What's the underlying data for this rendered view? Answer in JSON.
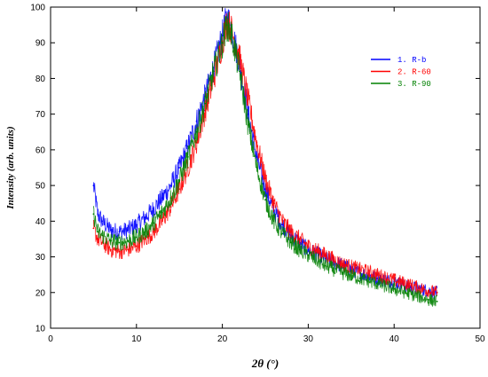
{
  "chart_data": {
    "type": "line",
    "title": "",
    "xlabel": "2θ (°)",
    "ylabel": "Intensity (arb. units)",
    "xlim": [
      0,
      50
    ],
    "ylim": [
      10,
      100
    ],
    "xticks": [
      0,
      10,
      20,
      30,
      40,
      50
    ],
    "yticks": [
      10,
      20,
      30,
      40,
      50,
      60,
      70,
      80,
      90,
      100
    ],
    "grid": false,
    "legend_position": "top-right",
    "series": [
      {
        "name": "1. R-b",
        "color": "#0000ff",
        "x": [
          5.0,
          5.5,
          6,
          7,
          8,
          9,
          10,
          11,
          12,
          13,
          14,
          15,
          16,
          17,
          18,
          19,
          20,
          20.5,
          21,
          22,
          23,
          24,
          25,
          26,
          27,
          28,
          29,
          30,
          32,
          34,
          36,
          38,
          40,
          42,
          44,
          45
        ],
        "y": [
          50,
          42,
          40,
          37.5,
          37,
          37.5,
          39,
          41,
          43.5,
          46.5,
          50,
          55,
          61,
          68,
          75,
          83,
          92,
          97,
          95,
          84,
          70,
          58,
          49,
          43,
          39,
          36,
          34,
          32,
          29.5,
          27.5,
          25.5,
          24,
          23,
          21.5,
          20.5,
          20
        ]
      },
      {
        "name": "2. R-60",
        "color": "#ff0000",
        "x": [
          5.0,
          5.5,
          6,
          7,
          8,
          9,
          10,
          11,
          12,
          13,
          14,
          15,
          16,
          17,
          18,
          19,
          20,
          20.5,
          21,
          22,
          23,
          24,
          25,
          26,
          27,
          28,
          29,
          30,
          32,
          34,
          36,
          38,
          40,
          42,
          44,
          45
        ],
        "y": [
          38,
          35,
          34,
          32,
          31.5,
          32,
          33,
          35,
          37,
          40,
          44,
          49,
          55,
          62,
          71,
          80,
          90,
          96,
          94,
          86,
          74,
          62,
          52,
          45,
          40,
          37,
          35,
          33,
          30.5,
          28,
          26.5,
          25,
          23.5,
          22,
          20.5,
          20
        ]
      },
      {
        "name": "3. R-90",
        "color": "#008000",
        "x": [
          5.0,
          5.5,
          6,
          7,
          8,
          9,
          10,
          11,
          12,
          13,
          14,
          15,
          16,
          17,
          18,
          19,
          20,
          20.5,
          21,
          22,
          23,
          24,
          25,
          26,
          27,
          28,
          29,
          30,
          32,
          34,
          36,
          38,
          40,
          42,
          44,
          45
        ],
        "y": [
          42,
          37,
          36,
          34.5,
          34,
          34.5,
          35.5,
          37,
          39.5,
          42.5,
          46.5,
          51.5,
          58,
          65,
          73,
          82,
          90,
          95,
          93,
          82,
          67,
          55,
          46,
          40,
          36.5,
          34,
          32,
          30.5,
          27.5,
          25.5,
          24,
          22.5,
          21,
          19.5,
          18,
          17.5
        ]
      }
    ]
  }
}
